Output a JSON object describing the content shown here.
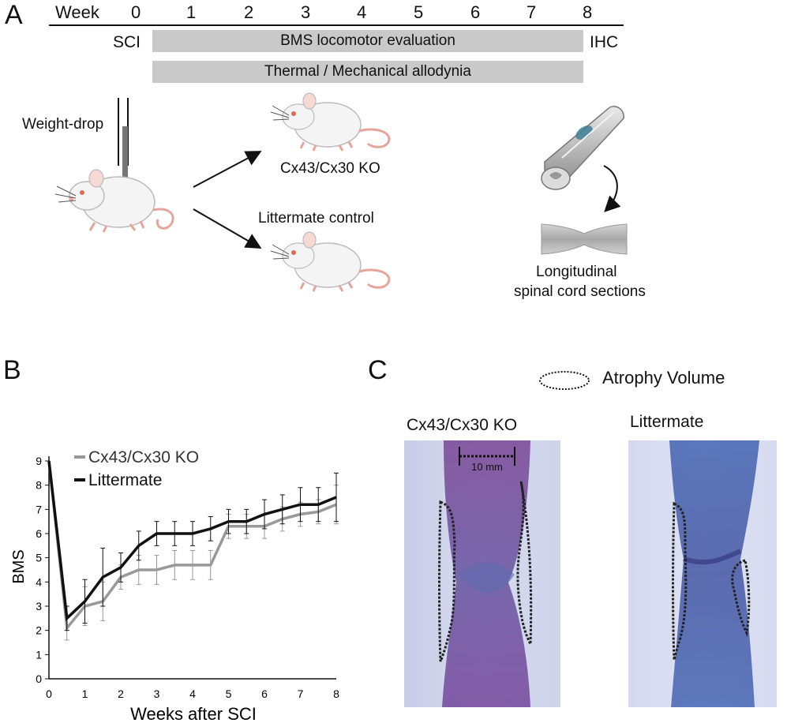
{
  "panel_a": {
    "letter": "A",
    "week_label": "Week",
    "weeks": [
      "0",
      "1",
      "2",
      "3",
      "4",
      "5",
      "6",
      "7",
      "8"
    ],
    "sci_label": "SCI",
    "ihc_label": "IHC",
    "bar1_label": "BMS locomotor evaluation",
    "bar2_label": "Thermal / Mechanical allodynia",
    "weight_drop_label": "Weight-drop",
    "ko_label": "Cx43/Cx30 KO",
    "control_label": "Littermate control",
    "sections_label_line1": "Longitudinal",
    "sections_label_line2": "spinal cord sections"
  },
  "panel_b": {
    "letter": "B",
    "chart_data": {
      "type": "line",
      "xlabel": "Weeks after SCI",
      "ylabel": "BMS",
      "x_ticks": [
        "0",
        "1",
        "2",
        "3",
        "4",
        "5",
        "6",
        "7",
        "8"
      ],
      "y_ticks": [
        "0",
        "1",
        "2",
        "3",
        "4",
        "5",
        "6",
        "7",
        "8",
        "9"
      ],
      "xlim": [
        0,
        8
      ],
      "ylim": [
        0,
        9
      ],
      "legend_position": "top-left",
      "series": [
        {
          "name": "Cx43/Cx30 KO",
          "color": "#999999",
          "x": [
            0,
            0.5,
            1,
            1.5,
            2,
            2.5,
            3,
            3.5,
            4,
            4.5,
            5,
            5.5,
            6,
            6.5,
            7,
            7.5,
            8
          ],
          "values": [
            9,
            2.1,
            3.0,
            3.2,
            4.2,
            4.5,
            4.5,
            4.7,
            4.7,
            4.7,
            6.3,
            6.3,
            6.3,
            6.6,
            6.8,
            6.9,
            7.2
          ],
          "errors": [
            0,
            0.5,
            0.8,
            0.8,
            0.5,
            0.6,
            0.6,
            0.6,
            0.6,
            0.6,
            0.5,
            0.5,
            0.5,
            0.5,
            0.5,
            0.5,
            0.8
          ]
        },
        {
          "name": "Littermate",
          "color": "#111111",
          "x": [
            0,
            0.5,
            1,
            1.5,
            2,
            2.5,
            3,
            3.5,
            4,
            4.5,
            5,
            5.5,
            6,
            6.5,
            7,
            7.5,
            8
          ],
          "values": [
            9,
            2.5,
            3.2,
            4.2,
            4.6,
            5.5,
            6.0,
            6.0,
            6.0,
            6.2,
            6.5,
            6.5,
            6.8,
            7.0,
            7.2,
            7.2,
            7.5
          ],
          "errors": [
            0,
            0.5,
            0.9,
            1.2,
            0.6,
            0.6,
            0.5,
            0.5,
            0.5,
            0.5,
            0.5,
            0.5,
            0.6,
            0.6,
            0.7,
            0.7,
            1.0
          ]
        }
      ]
    }
  },
  "panel_c": {
    "letter": "C",
    "legend_label": "Atrophy Volume",
    "ko_label": "Cx43/Cx30 KO",
    "littermate_label": "Littermate",
    "scale_label": "10 mm"
  }
}
